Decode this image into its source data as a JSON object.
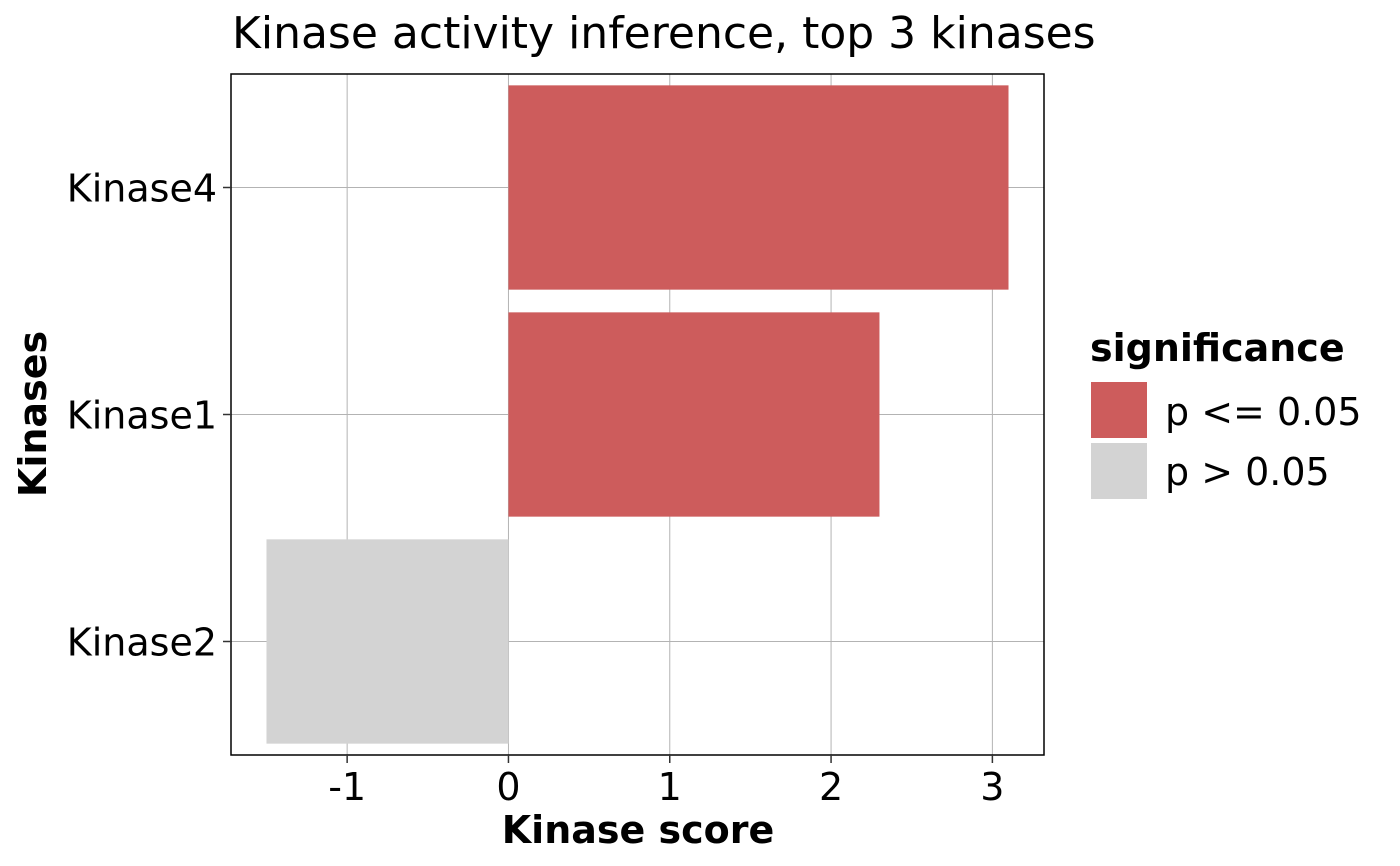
{
  "chart_data": {
    "type": "bar",
    "orientation": "horizontal",
    "title": "Kinase activity inference, top 3 kinases",
    "xlabel": "Kinase score",
    "ylabel": "Kinases",
    "xlim": [
      -1.72,
      3.32
    ],
    "xticks": [
      -1,
      0,
      1,
      2,
      3
    ],
    "categories": [
      "Kinase4",
      "Kinase1",
      "Kinase2"
    ],
    "values": [
      3.1,
      2.3,
      -1.5
    ],
    "significance": [
      "p <= 0.05",
      "p <= 0.05",
      "p > 0.05"
    ],
    "grid": true,
    "legend": {
      "title": "significance",
      "position": "right",
      "entries": [
        {
          "label": "p <= 0.05",
          "color": "#CD5C5C"
        },
        {
          "label": "p > 0.05",
          "color": "#D3D3D3"
        }
      ]
    }
  }
}
